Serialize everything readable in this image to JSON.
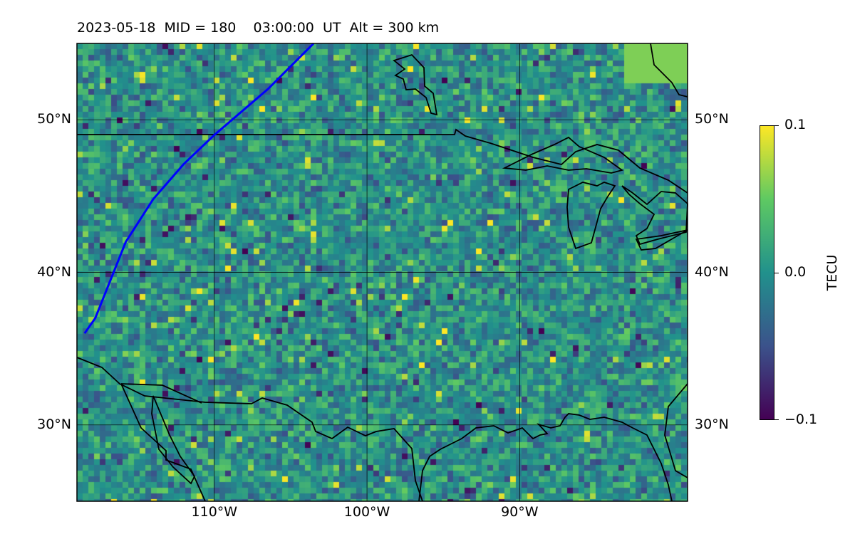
{
  "title": "2023-05-18  MID = 180    03:00:00  UT  Alt = 300 km",
  "map": {
    "lon_range": [
      -119,
      -79
    ],
    "lat_range": [
      25,
      55
    ],
    "lat_ticks": [
      {
        "value": 50,
        "label": "50°N"
      },
      {
        "value": 40,
        "label": "40°N"
      },
      {
        "value": 30,
        "label": "30°N"
      }
    ],
    "lon_ticks": [
      {
        "value": -110,
        "label": "110°W"
      },
      {
        "value": -100,
        "label": "100°W"
      },
      {
        "value": -90,
        "label": "90°W"
      }
    ],
    "gridlines": true,
    "colormap": "viridis",
    "track_color": "#0000ff",
    "boundary_color": "#000000",
    "track_path": [
      [
        -118.5,
        36.0
      ],
      [
        -117.8,
        37.0
      ],
      [
        -115.8,
        42.0
      ],
      [
        -114.0,
        44.8
      ],
      [
        -112.0,
        47.1
      ],
      [
        -110.0,
        49.0
      ],
      [
        -106.5,
        52.0
      ],
      [
        -103.5,
        55.0
      ]
    ]
  },
  "colorbar": {
    "label": "TECU",
    "min": -0.1,
    "max": 0.1,
    "ticks": [
      {
        "value": 0.1,
        "label": "0.1"
      },
      {
        "value": 0.0,
        "label": "0.0"
      },
      {
        "value": -0.1,
        "label": "−0.1"
      }
    ]
  }
}
